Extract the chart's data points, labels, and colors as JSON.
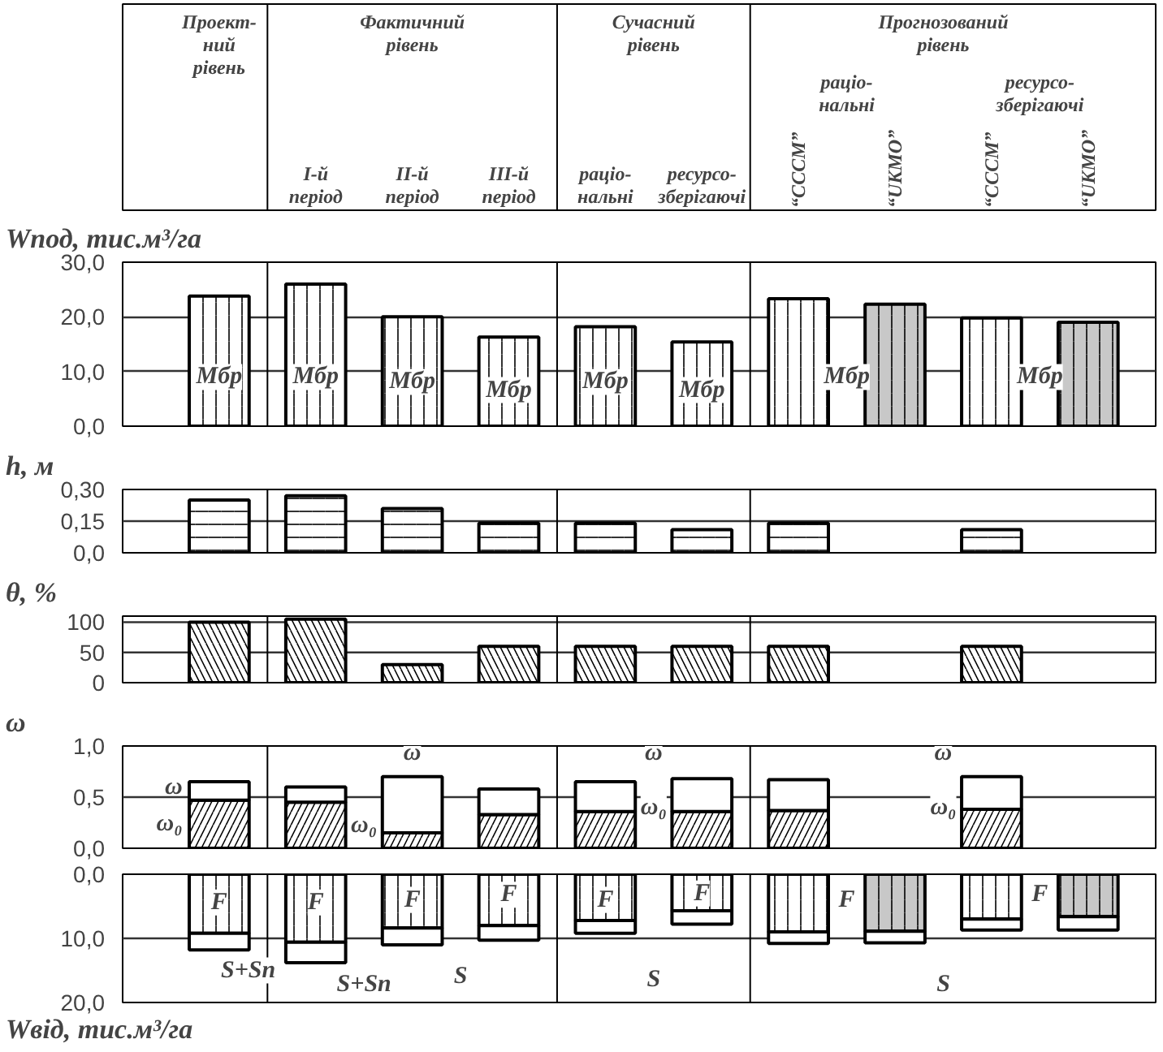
{
  "chart_data": [
    {
      "type": "bar",
      "ylabel": "Wпод, тис.м³/га",
      "categories": [
        null,
        "I-й\nперіод",
        "II-й\nперіод",
        "III-й\nперіод",
        "раціо-\nнальні",
        "ресурсо-\nзберігаючі",
        "“CCCM”",
        "“UKMO”",
        "“CCCM”",
        "“UKMO”"
      ],
      "values": [
        23.8,
        26.0,
        20.0,
        16.3,
        18.2,
        15.4,
        23.3,
        22.3,
        19.8,
        19.0
      ],
      "colors": [
        "#ffffff",
        "#ffffff",
        "#ffffff",
        "#ffffff",
        "#ffffff",
        "#ffffff",
        "#ffffff",
        "#c8c8c8",
        "#ffffff",
        "#c8c8c8"
      ],
      "ylim": [
        0,
        30
      ],
      "yticks": [
        {
          "value": 0,
          "label": "0,0"
        },
        {
          "value": 10,
          "label": "10,0"
        },
        {
          "value": 20,
          "label": "20,0"
        },
        {
          "value": 30,
          "label": "30,0"
        }
      ],
      "grid": "y",
      "tick_labels": "y",
      "annotations": [
        "Проект-\nний\nрівень",
        "Фактичний\nрівень",
        "Сучасний\nрівень",
        "Прогнозований\nрівень",
        "раціо-\nнальні",
        "ресурсо-\nзберігаючі",
        "Mбр",
        "Mбр",
        "Mбр",
        "Mбр",
        "Mбр",
        "Mбр",
        "Mбр",
        "Mбр"
      ]
    },
    {
      "type": "bar",
      "ylabel": "h, м",
      "categories": [
        null,
        null,
        null,
        null,
        null,
        null,
        null,
        null,
        null,
        null
      ],
      "values": [
        0.25,
        0.27,
        0.21,
        0.14,
        0.14,
        0.11,
        0.14,
        null,
        0.11,
        null
      ],
      "color": "#ffffff",
      "ylim": [
        0,
        0.3
      ],
      "yticks": [
        {
          "value": 0,
          "label": "0,0"
        },
        {
          "value": 0.15,
          "label": "0,15"
        },
        {
          "value": 0.3,
          "label": "0,30"
        }
      ],
      "ref_lines": [
        {
          "axis": "y",
          "value": 0.15
        }
      ],
      "tick_labels": "y"
    },
    {
      "type": "bar",
      "ylabel": "θ, %",
      "categories": [
        null,
        null,
        null,
        null,
        null,
        null,
        null,
        null,
        null,
        null
      ],
      "values": [
        100,
        105,
        30,
        60,
        60,
        60,
        60,
        null,
        60,
        null
      ],
      "color": "#ffffff",
      "ylim": [
        0,
        110
      ],
      "yticks": [
        0,
        50,
        100
      ],
      "ref_lines": [
        {
          "axis": "y",
          "value": 50
        },
        {
          "axis": "y",
          "value": 100
        }
      ],
      "tick_labels": "y"
    },
    {
      "type": "bar",
      "ylabel": "ω",
      "stacked": true,
      "categories": [
        null,
        null,
        null,
        null,
        null,
        null,
        null,
        null,
        null,
        null
      ],
      "series": [
        {
          "name": "ω₀",
          "color": "#ffffff",
          "values": [
            0.47,
            0.45,
            0.15,
            0.33,
            0.36,
            0.36,
            0.37,
            null,
            0.38,
            null
          ]
        },
        {
          "name": "ω",
          "color": "#ffffff",
          "values": [
            0.18,
            0.15,
            0.55,
            0.25,
            0.29,
            0.32,
            0.3,
            null,
            0.32,
            null
          ]
        }
      ],
      "ylim": [
        0,
        1
      ],
      "yticks": [
        {
          "value": 0,
          "label": "0,0"
        },
        {
          "value": 0.5,
          "label": "0,5"
        },
        {
          "value": 1,
          "label": "1,0"
        }
      ],
      "ref_lines": [
        {
          "axis": "y",
          "value": 0.5
        }
      ],
      "tick_labels": "y",
      "annotations": [
        "ω",
        "ω₀",
        "ω",
        "ω₀",
        "ω",
        "ω₀"
      ]
    },
    {
      "type": "bar",
      "ylabel": "Wвід, тис.м³/га",
      "stacked": true,
      "categories": [
        null,
        null,
        null,
        null,
        null,
        null,
        null,
        null,
        null,
        null
      ],
      "series": [
        {
          "colors": [
            "#ffffff",
            "#ffffff",
            "#ffffff",
            "#ffffff",
            "#ffffff",
            "#ffffff",
            "#ffffff",
            "#c8c8c8",
            "#ffffff",
            "#c8c8c8"
          ],
          "values": [
            9.2,
            10.6,
            8.4,
            8.0,
            7.2,
            5.7,
            9.0,
            8.9,
            7.0,
            6.6
          ]
        },
        {
          "color": "#ffffff",
          "values": [
            2.6,
            3.2,
            2.6,
            2.3,
            2.0,
            2.1,
            1.8,
            1.8,
            1.7,
            2.1
          ]
        }
      ],
      "ylim": [
        20,
        0
      ],
      "yticks": [
        {
          "value": 0,
          "label": "0,0"
        },
        {
          "value": 10,
          "label": "10,0"
        },
        {
          "value": 20,
          "label": "20,0"
        }
      ],
      "ref_lines": [
        {
          "axis": "y",
          "value": 10
        }
      ],
      "tick_labels": "y",
      "annotations": [
        "F",
        "F",
        "F",
        "F",
        "F",
        "F",
        "F",
        "F",
        "S+Sп",
        "S+Sп",
        "S",
        "S",
        "S"
      ]
    }
  ]
}
